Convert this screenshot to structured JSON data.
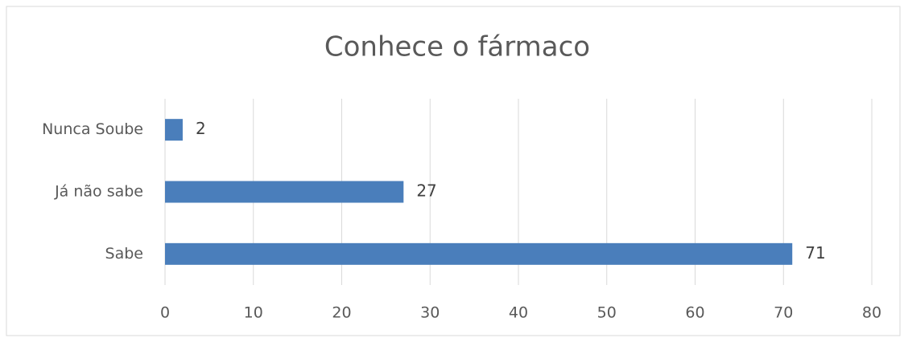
{
  "chart_data": {
    "type": "bar",
    "orientation": "horizontal",
    "title": "Conhece o fármaco",
    "categories": [
      "Sabe",
      "Já não sabe",
      "Nunca Soube"
    ],
    "values": [
      71,
      27,
      2
    ],
    "color": "#4a7ebb",
    "xlim": [
      0,
      80
    ],
    "xticks": [
      0,
      10,
      20,
      30,
      40,
      50,
      60,
      70,
      80
    ],
    "grid": true
  }
}
